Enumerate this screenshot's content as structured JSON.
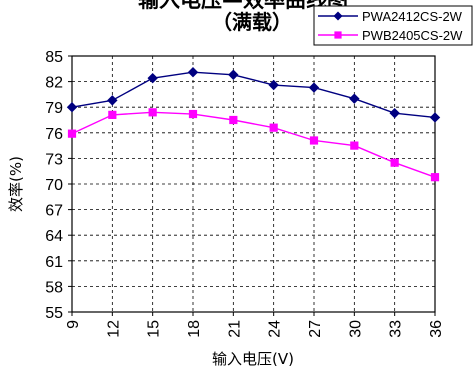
{
  "chart_data": {
    "type": "line",
    "title": "输入电压—效率曲线图",
    "subtitle": "（满载）",
    "xlabel": "输入电压(V)",
    "ylabel": "效率(%)",
    "x": [
      9,
      12,
      15,
      18,
      21,
      24,
      27,
      30,
      33,
      36
    ],
    "x_ticks": [
      "9",
      "12",
      "15",
      "18",
      "21",
      "24",
      "27",
      "30",
      "33",
      "36"
    ],
    "y_ticks": [
      "55",
      "58",
      "61",
      "64",
      "67",
      "70",
      "73",
      "76",
      "79",
      "82",
      "85"
    ],
    "ylim": [
      55,
      85
    ],
    "grid": true,
    "legend_position": "top-right",
    "series": [
      {
        "name": "PWA2412CS-2W",
        "color": "#000080",
        "marker": "diamond",
        "values": [
          79.0,
          79.8,
          82.4,
          83.1,
          82.8,
          81.6,
          81.3,
          80.0,
          78.3,
          77.8
        ]
      },
      {
        "name": "PWB2405CS-2W",
        "color": "#FF00FF",
        "marker": "square",
        "values": [
          75.9,
          78.1,
          78.4,
          78.2,
          77.5,
          76.6,
          75.1,
          74.5,
          72.5,
          70.8
        ]
      }
    ]
  }
}
